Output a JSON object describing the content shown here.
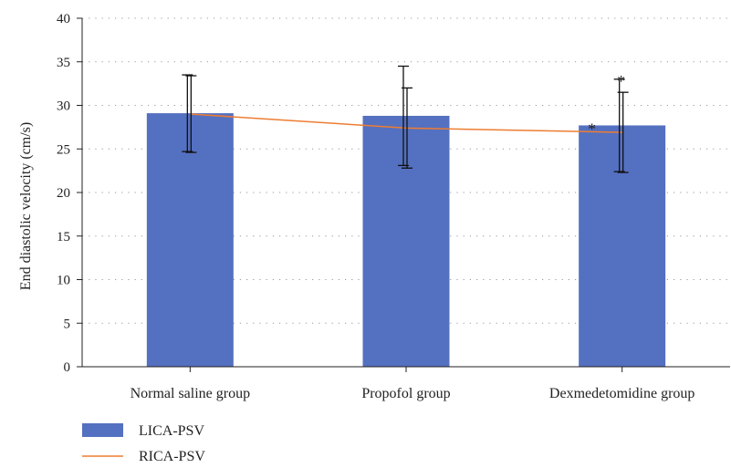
{
  "chart_data": {
    "type": "bar",
    "categories": [
      "Normal saline group",
      "Propofol group",
      "Dexmedetomidine group"
    ],
    "ylabel": "End diastolic velocity (cm/s)",
    "xlabel": "",
    "ylim": [
      0,
      40
    ],
    "yticks": [
      0,
      5,
      10,
      15,
      20,
      25,
      30,
      35,
      40
    ],
    "grid": true,
    "legend_position": "bottom-left",
    "series": [
      {
        "name": "LICA-PSV",
        "kind": "bar",
        "color": "#5470c0",
        "values": [
          29.1,
          28.8,
          27.7
        ],
        "error": [
          4.4,
          5.7,
          5.3
        ],
        "annotations": [
          "",
          "",
          "*"
        ]
      },
      {
        "name": "RICA-PSV",
        "kind": "line",
        "color": "#ed7d31",
        "values": [
          29.0,
          27.4,
          26.9
        ],
        "error": [
          4.4,
          4.6,
          4.6
        ],
        "annotations": [
          "",
          "",
          "*"
        ]
      }
    ]
  }
}
